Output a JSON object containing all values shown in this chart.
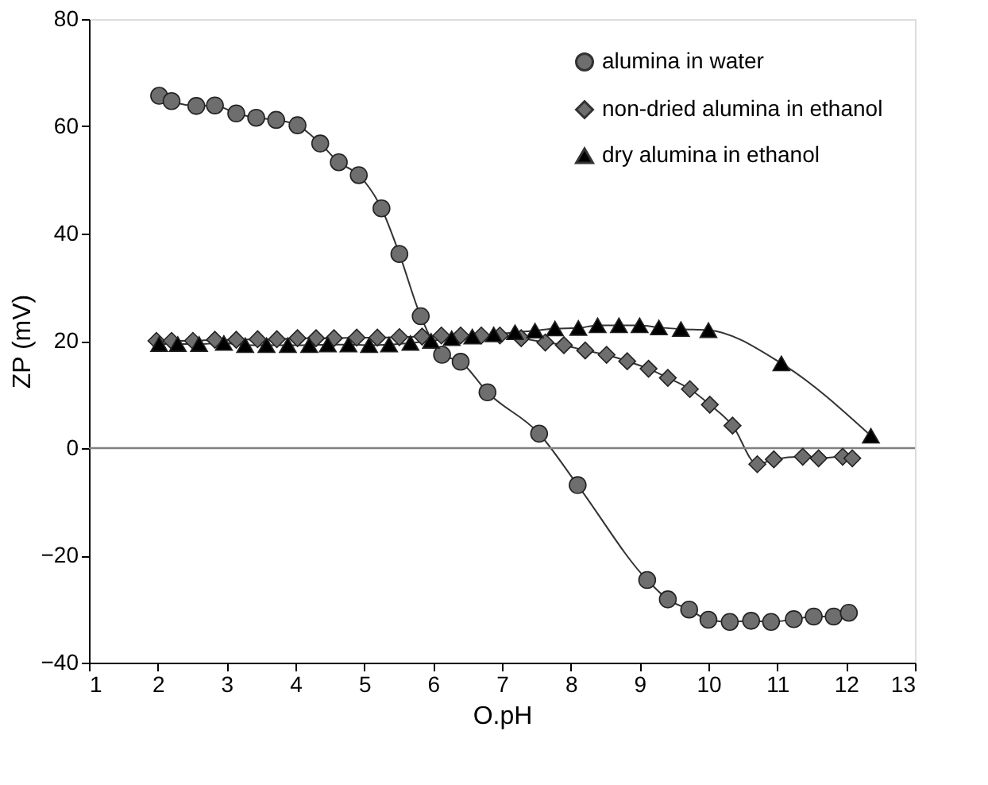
{
  "chart_data": {
    "type": "line",
    "xlabel": "O.pH",
    "ylabel": "ZP (mV)",
    "xlim": [
      1,
      13
    ],
    "xticks": [
      1,
      2,
      3,
      4,
      5,
      6,
      7,
      8,
      9,
      10,
      11,
      12,
      13
    ],
    "ylim": [
      -40,
      80
    ],
    "yticks": [
      -40,
      -20,
      0,
      20,
      40,
      60,
      80
    ],
    "grid": false,
    "legend": "top right",
    "ref_lines": [
      {
        "axis": "y",
        "value": 0,
        "color": "#808080"
      }
    ],
    "series": [
      {
        "name": "alumina in water",
        "color": "#6e6e6e",
        "marker": "circle",
        "x": [
          2.02,
          2.2,
          2.56,
          2.83,
          3.14,
          3.43,
          3.72,
          4.03,
          4.36,
          4.63,
          4.92,
          5.25,
          5.51,
          5.82,
          6.13,
          6.4,
          6.79,
          7.54,
          8.1,
          9.11,
          9.41,
          9.72,
          10.0,
          10.31,
          10.62,
          10.91,
          11.24,
          11.53,
          11.82,
          12.04
        ],
        "values": [
          65.7,
          64.7,
          63.8,
          63.9,
          62.4,
          61.6,
          61.2,
          60.2,
          56.8,
          53.3,
          50.9,
          44.7,
          36.2,
          24.6,
          17.4,
          16.1,
          10.4,
          2.7,
          -6.9,
          -24.6,
          -28.2,
          -30.1,
          -32.0,
          -32.4,
          -32.2,
          -32.4,
          -31.9,
          -31.4,
          -31.4,
          -30.7
        ]
      },
      {
        "name": "non-dried alumina in ethanol",
        "color": "#6e6e6e",
        "marker": "diamond",
        "x": [
          1.98,
          2.2,
          2.51,
          2.83,
          3.14,
          3.45,
          3.73,
          4.03,
          4.3,
          4.56,
          4.89,
          5.19,
          5.51,
          5.84,
          6.12,
          6.4,
          6.7,
          6.97,
          7.28,
          7.63,
          7.9,
          8.21,
          8.52,
          8.82,
          9.13,
          9.41,
          9.73,
          10.02,
          10.35,
          10.71,
          10.95,
          11.37,
          11.6,
          11.95,
          12.09
        ],
        "values": [
          20,
          20,
          20,
          20.2,
          20.2,
          20.3,
          20.3,
          20.5,
          20.5,
          20.5,
          20.6,
          20.6,
          20.7,
          20.8,
          21,
          21,
          21,
          21,
          20.5,
          19.7,
          19.2,
          18.2,
          17.4,
          16.2,
          14.8,
          13.1,
          11.0,
          8.1,
          4.2,
          -3.0,
          -2.1,
          -1.6,
          -1.9,
          -1.6,
          -1.9
        ]
      },
      {
        "name": "dry alumina in ethanol",
        "color": "#000000",
        "marker": "triangle",
        "x": [
          2.02,
          2.29,
          2.6,
          2.96,
          3.27,
          3.58,
          3.89,
          4.2,
          4.47,
          4.77,
          5.07,
          5.36,
          5.67,
          5.97,
          6.27,
          6.57,
          6.88,
          7.19,
          7.48,
          7.77,
          8.11,
          8.39,
          8.7,
          9.0,
          9.28,
          9.6,
          10.0,
          11.06,
          12.36
        ],
        "values": [
          19.4,
          19.4,
          19.4,
          19.6,
          19.2,
          19.2,
          19.2,
          19.2,
          19.3,
          19.3,
          19.2,
          19.3,
          19.6,
          20,
          20.5,
          20.8,
          21.2,
          21.6,
          21.9,
          22.3,
          22.4,
          22.9,
          22.9,
          22.9,
          22.5,
          22.2,
          22.0,
          15.8,
          2.3
        ]
      }
    ]
  }
}
